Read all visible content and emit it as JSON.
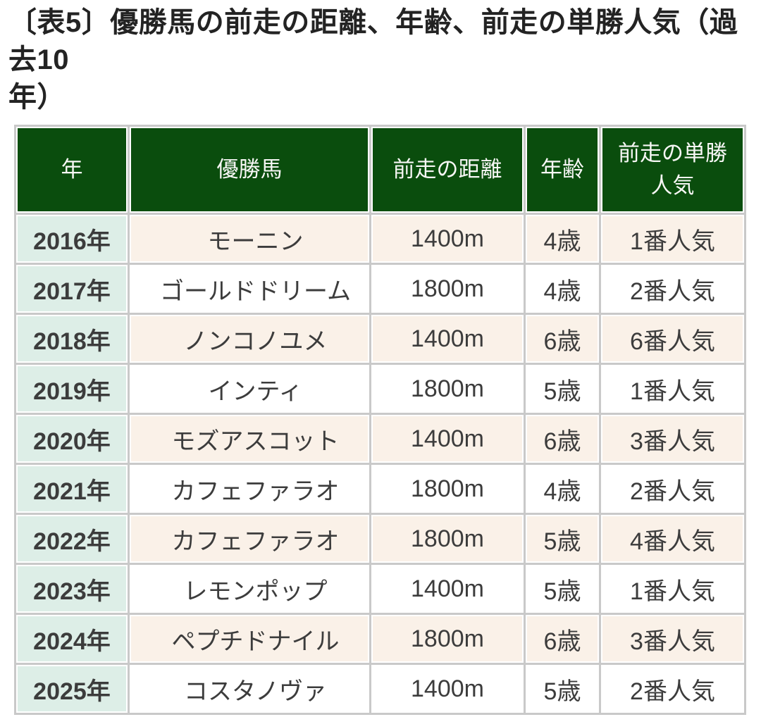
{
  "title": {
    "line1": "〔表5〕優勝馬の前走の距離、年齢、前走の単勝人気（過去10",
    "line2": "年）",
    "full": "〔表5〕優勝馬の前走の距離、年齢、前走の単勝人気（過去10年）"
  },
  "table": {
    "columns": [
      {
        "key": "year",
        "label": "年"
      },
      {
        "key": "horse",
        "label": "優勝馬"
      },
      {
        "key": "distance",
        "label": "前走の距離"
      },
      {
        "key": "age",
        "label": "年齢"
      },
      {
        "key": "popularity",
        "label": "前走の単勝\n人気"
      }
    ],
    "rows": [
      {
        "year": "2016年",
        "horse": "モーニン",
        "distance": "1400m",
        "age": "4歳",
        "popularity": "1番人気"
      },
      {
        "year": "2017年",
        "horse": "ゴールドドリーム",
        "distance": "1800m",
        "age": "4歳",
        "popularity": "2番人気"
      },
      {
        "year": "2018年",
        "horse": "ノンコノユメ",
        "distance": "1400m",
        "age": "6歳",
        "popularity": "6番人気"
      },
      {
        "year": "2019年",
        "horse": "インティ",
        "distance": "1800m",
        "age": "5歳",
        "popularity": "1番人気"
      },
      {
        "year": "2020年",
        "horse": "モズアスコット",
        "distance": "1400m",
        "age": "6歳",
        "popularity": "3番人気"
      },
      {
        "year": "2021年",
        "horse": "カフェファラオ",
        "distance": "1800m",
        "age": "4歳",
        "popularity": "2番人気"
      },
      {
        "year": "2022年",
        "horse": "カフェファラオ",
        "distance": "1800m",
        "age": "5歳",
        "popularity": "4番人気"
      },
      {
        "year": "2023年",
        "horse": "レモンポップ",
        "distance": "1400m",
        "age": "5歳",
        "popularity": "1番人気"
      },
      {
        "year": "2024年",
        "horse": "ペプチドナイル",
        "distance": "1800m",
        "age": "6歳",
        "popularity": "3番人気"
      },
      {
        "year": "2025年",
        "horse": "コスタノヴァ",
        "distance": "1400m",
        "age": "5歳",
        "popularity": "2番人気"
      }
    ]
  },
  "colors": {
    "header_bg": "#0a4d0d",
    "header_text": "#f7f7f5",
    "year_col_bg": "#ddeee7",
    "odd_row_bg": "#faf1e8",
    "even_row_bg": "#ffffff",
    "gridline": "#c9c9c9",
    "body_text": "#3c3c3c",
    "title_text": "#232323"
  }
}
